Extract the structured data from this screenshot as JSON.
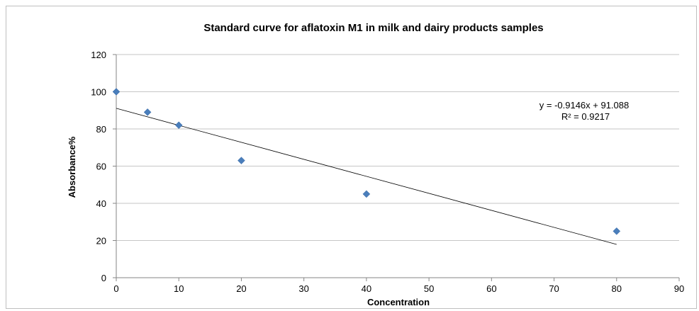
{
  "chart_data": {
    "type": "scatter",
    "title": "Standard curve for aflatoxin M1 in milk and dairy products samples",
    "xlabel": "Concentration",
    "ylabel": "Absorbance%",
    "xlim": [
      0,
      90
    ],
    "ylim": [
      0,
      120
    ],
    "x_ticks": [
      0,
      10,
      20,
      30,
      40,
      50,
      60,
      70,
      80,
      90
    ],
    "y_ticks": [
      0,
      20,
      40,
      60,
      80,
      100,
      120
    ],
    "grid": "horizontal",
    "legend": "none",
    "series": [
      {
        "x": [
          0,
          5,
          10,
          20,
          40,
          80
        ],
        "y": [
          100,
          89,
          82,
          63,
          45,
          25
        ],
        "marker": "diamond",
        "color": "#4a7ebb"
      }
    ],
    "trendline": {
      "type": "linear",
      "slope": -0.9146,
      "intercept": 91.088,
      "x_range": [
        0,
        80
      ],
      "color": "#000000",
      "equation_label": "y = -0.9146x + 91.088",
      "r2_label": "R² = 0.9217"
    }
  }
}
